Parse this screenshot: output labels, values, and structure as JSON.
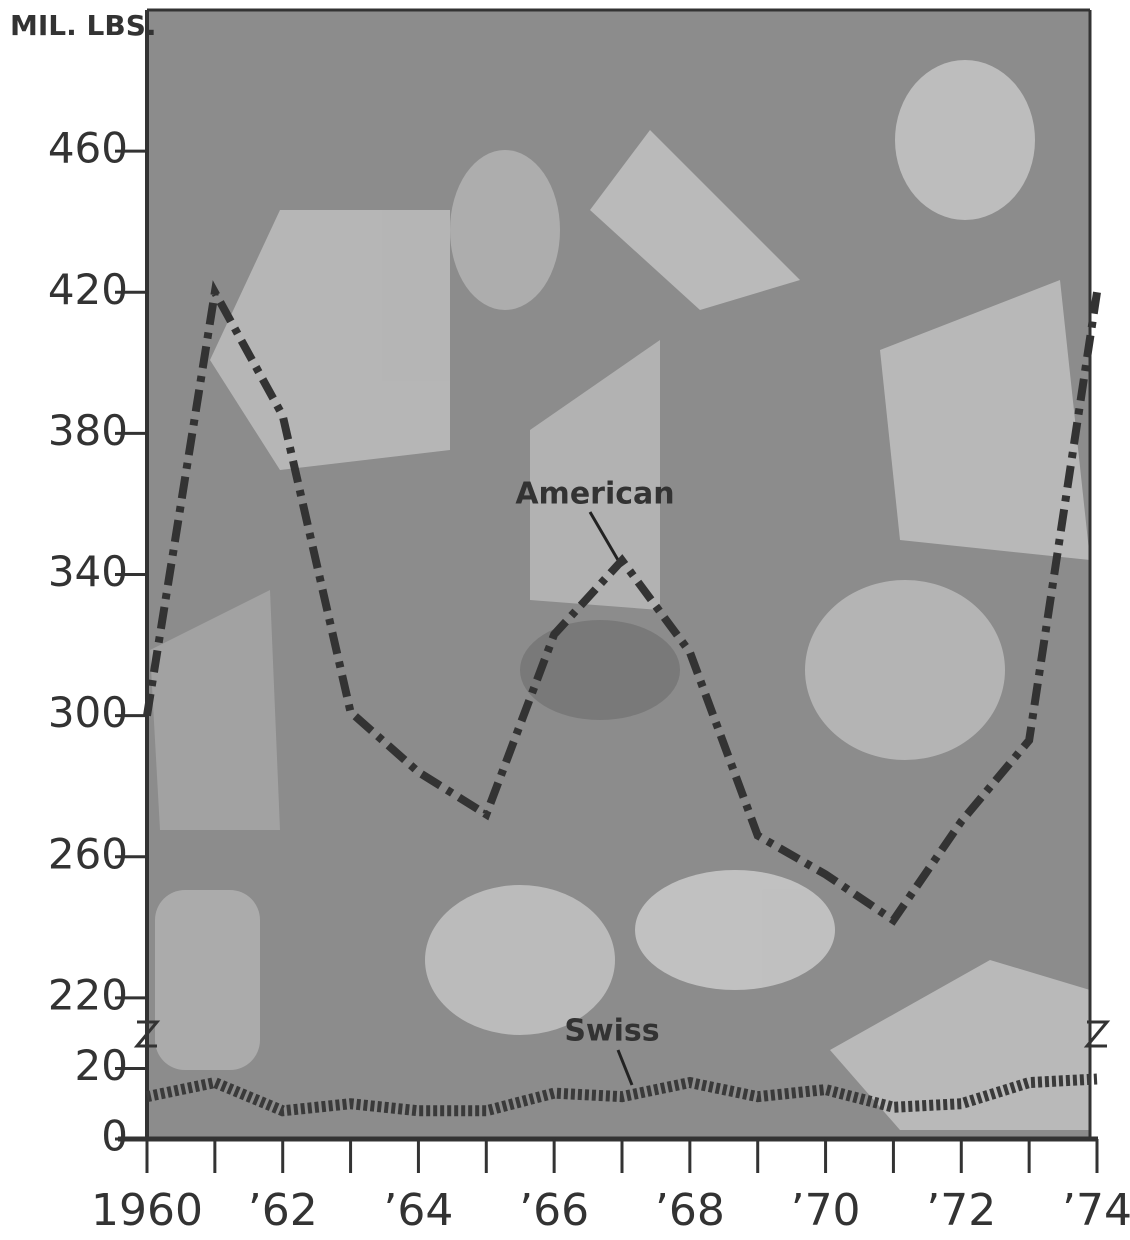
{
  "chart_data": {
    "type": "line",
    "y_axis_label": "MIL. LBS.",
    "categories": [
      "1960",
      null,
      "’62",
      null,
      "’64",
      null,
      "’66",
      null,
      "’68",
      null,
      "’70",
      null,
      "’72",
      null,
      "’74"
    ],
    "series": [
      {
        "name": "American",
        "color": "#333333",
        "style": "dashdot",
        "values": [
          300,
          420,
          385,
          301,
          284,
          272,
          323,
          344,
          318,
          266,
          255,
          242,
          270,
          293,
          420
        ]
      },
      {
        "name": "Swiss",
        "color": "#3a3a3a",
        "style": "dotted",
        "values": [
          12,
          16,
          8,
          10,
          8,
          8,
          13,
          12,
          16,
          12,
          14,
          9,
          10,
          16,
          17
        ]
      }
    ],
    "ylim": [
      0,
      500
    ],
    "axis_break": [
      20,
      220
    ],
    "yticks": [
      0,
      20,
      220,
      260,
      300,
      340,
      380,
      420,
      460
    ]
  }
}
